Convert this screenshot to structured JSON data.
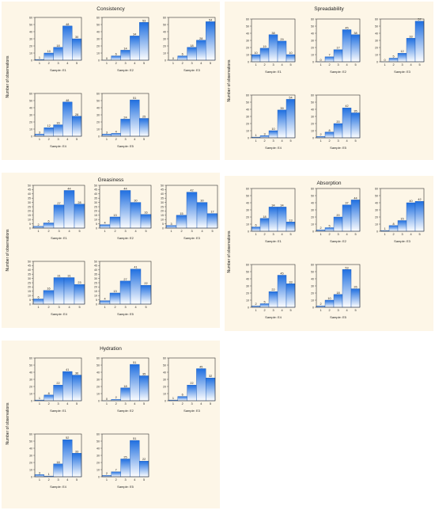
{
  "x_categories": [
    "1",
    "2",
    "3",
    "4",
    "5"
  ],
  "colors": {
    "panel_bg": "#fdf6e7",
    "bar_top": "#1f6fe0",
    "bar_bottom": "#ffffff",
    "bar_stroke": "#1c5ab8",
    "frame": "#333333"
  },
  "chart_data": [
    {
      "type": "bar",
      "title": "Consistency",
      "ylabel": "Number of observations",
      "ylim": [
        0,
        60
      ],
      "yticks": [
        0,
        10,
        20,
        30,
        40,
        50,
        60
      ],
      "categories": [
        "1",
        "2",
        "3",
        "4",
        "5"
      ],
      "series": [
        {
          "name": "Sample: E1",
          "values": [
            1,
            10,
            18,
            48,
            30
          ]
        },
        {
          "name": "Sample: E2",
          "values": [
            0,
            6,
            14,
            34,
            53
          ]
        },
        {
          "name": "Sample: E3",
          "values": [
            0,
            6,
            18,
            28,
            54
          ]
        },
        {
          "name": "Sample: E4",
          "values": [
            3,
            12,
            16,
            48,
            28
          ]
        },
        {
          "name": "Sample: E5",
          "values": [
            3,
            4,
            24,
            51,
            25
          ]
        }
      ]
    },
    {
      "type": "bar",
      "title": "Spreadability",
      "ylabel": "Number of observations",
      "ylim": [
        0,
        60
      ],
      "yticks": [
        0,
        10,
        20,
        30,
        40,
        50,
        60
      ],
      "categories": [
        "1",
        "2",
        "3",
        "4",
        "5"
      ],
      "series": [
        {
          "name": "Sample: E1",
          "values": [
            10,
            19,
            38,
            29,
            10
          ]
        },
        {
          "name": "Sample: E2",
          "values": [
            0,
            7,
            17,
            45,
            38
          ]
        },
        {
          "name": "Sample: E3",
          "values": [
            0,
            5,
            12,
            33,
            57
          ]
        },
        {
          "name": "Sample: E4",
          "values": [
            1,
            3,
            10,
            39,
            54
          ]
        },
        {
          "name": "Sample: E5",
          "values": [
            2,
            8,
            20,
            42,
            35
          ]
        }
      ]
    },
    {
      "type": "bar",
      "title": "Greasiness",
      "ylabel": "Number of observations",
      "ylim": [
        0,
        50
      ],
      "yticks": [
        0,
        5,
        10,
        15,
        20,
        25,
        30,
        35,
        40,
        45,
        50
      ],
      "categories": [
        "1",
        "2",
        "3",
        "4",
        "5"
      ],
      "series": [
        {
          "name": "Sample: E1",
          "values": [
            2,
            6,
            27,
            44,
            28
          ]
        },
        {
          "name": "Sample: E2",
          "values": [
            4,
            13,
            44,
            30,
            16
          ]
        },
        {
          "name": "Sample: E3",
          "values": [
            3,
            15,
            42,
            30,
            17
          ]
        },
        {
          "name": "Sample: E4",
          "values": [
            6,
            16,
            31,
            31,
            23
          ]
        },
        {
          "name": "Sample: E5",
          "values": [
            4,
            13,
            27,
            41,
            22
          ]
        }
      ]
    },
    {
      "type": "bar",
      "title": "Absorption",
      "ylabel": "Number of observations",
      "ylim": [
        0,
        60
      ],
      "yticks": [
        0,
        10,
        20,
        30,
        40,
        50,
        60
      ],
      "categories": [
        "1",
        "2",
        "3",
        "4",
        "5"
      ],
      "series": [
        {
          "name": "Sample: E1",
          "values": [
            6,
            18,
            34,
            34,
            13
          ]
        },
        {
          "name": "Sample: E2",
          "values": [
            2,
            5,
            20,
            37,
            44
          ]
        },
        {
          "name": "Sample: E3",
          "values": [
            1,
            8,
            15,
            40,
            42
          ]
        },
        {
          "name": "Sample: E4",
          "values": [
            2,
            5,
            22,
            45,
            33
          ]
        },
        {
          "name": "Sample: E5",
          "values": [
            2,
            10,
            18,
            53,
            26
          ]
        }
      ]
    },
    {
      "type": "bar",
      "title": "Hydration",
      "ylabel": "Number of observations",
      "ylim": [
        0,
        60
      ],
      "yticks": [
        0,
        10,
        20,
        30,
        40,
        50,
        60
      ],
      "categories": [
        "1",
        "2",
        "3",
        "4",
        "5"
      ],
      "series": [
        {
          "name": "Sample: E1",
          "values": [
            1,
            8,
            22,
            41,
            36
          ]
        },
        {
          "name": "Sample: E2",
          "values": [
            0,
            2,
            18,
            51,
            35
          ]
        },
        {
          "name": "Sample: E3",
          "values": [
            1,
            6,
            22,
            45,
            32
          ]
        },
        {
          "name": "Sample: E4",
          "values": [
            3,
            1,
            18,
            52,
            33
          ]
        },
        {
          "name": "Sample: E5",
          "values": [
            2,
            7,
            25,
            51,
            22
          ]
        }
      ]
    }
  ]
}
